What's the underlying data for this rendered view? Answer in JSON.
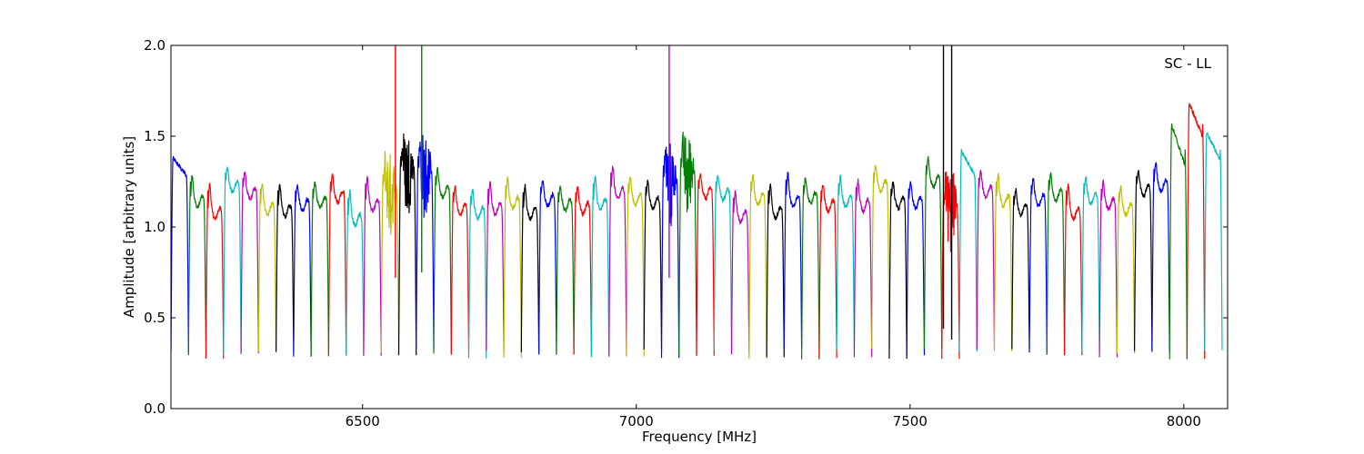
{
  "chart_data": {
    "type": "line",
    "title": "",
    "xlabel": "Frequency [MHz]",
    "ylabel": "Amplitude [arbitrary units]",
    "annotation": "SC - LL",
    "xlim": [
      6150,
      8080
    ],
    "ylim": [
      0.0,
      2.0
    ],
    "x_ticks": [
      6500,
      7000,
      7500,
      8000
    ],
    "x_tick_labels": [
      "6500",
      "7000",
      "7500",
      "8000"
    ],
    "y_ticks": [
      0.0,
      0.5,
      1.0,
      1.5,
      2.0
    ],
    "y_tick_labels": [
      "0.0",
      "0.5",
      "1.0",
      "1.5",
      "2.0"
    ],
    "grid": false,
    "legend": "none",
    "channel_width_mhz": 32,
    "color_cycle": [
      "#0000ff",
      "#008000",
      "#ff0000",
      "#00bfbf",
      "#bf00bf",
      "#bfbf00",
      "#000000"
    ],
    "channels": [
      {
        "start": 6150,
        "peak": 1.38,
        "shape": "rise"
      },
      {
        "start": 6182,
        "peak": 1.26,
        "shape": "flat"
      },
      {
        "start": 6214,
        "peak": 1.21,
        "shape": "flat"
      },
      {
        "start": 6246,
        "peak": 1.31,
        "shape": "flat"
      },
      {
        "start": 6278,
        "peak": 1.28,
        "shape": "flat"
      },
      {
        "start": 6310,
        "peak": 1.22,
        "shape": "flat"
      },
      {
        "start": 6342,
        "peak": 1.21,
        "shape": "flat"
      },
      {
        "start": 6374,
        "peak": 1.21,
        "shape": "flat"
      },
      {
        "start": 6406,
        "peak": 1.22,
        "shape": "flat"
      },
      {
        "start": 6438,
        "peak": 1.26,
        "shape": "flat"
      },
      {
        "start": 6470,
        "peak": 1.17,
        "shape": "flat"
      },
      {
        "start": 6502,
        "peak": 1.25,
        "shape": "flat"
      },
      {
        "start": 6534,
        "peak": 1.3,
        "shape": "rfi"
      },
      {
        "start": 6566,
        "peak": 1.4,
        "shape": "rfi"
      },
      {
        "start": 6598,
        "peak": 1.4,
        "shape": "rfi"
      },
      {
        "start": 6630,
        "peak": 1.29,
        "shape": "flat"
      },
      {
        "start": 6662,
        "peak": 1.2,
        "shape": "flat"
      },
      {
        "start": 6694,
        "peak": 1.18,
        "shape": "flat"
      },
      {
        "start": 6726,
        "peak": 1.22,
        "shape": "flat"
      },
      {
        "start": 6758,
        "peak": 1.24,
        "shape": "flat"
      },
      {
        "start": 6790,
        "peak": 1.2,
        "shape": "flat"
      },
      {
        "start": 6822,
        "peak": 1.23,
        "shape": "flat"
      },
      {
        "start": 6854,
        "peak": 1.2,
        "shape": "flat"
      },
      {
        "start": 6886,
        "peak": 1.2,
        "shape": "flat"
      },
      {
        "start": 6918,
        "peak": 1.25,
        "shape": "flat"
      },
      {
        "start": 6950,
        "peak": 1.31,
        "shape": "flat"
      },
      {
        "start": 6982,
        "peak": 1.25,
        "shape": "flat"
      },
      {
        "start": 7014,
        "peak": 1.23,
        "shape": "flat"
      },
      {
        "start": 7046,
        "peak": 1.35,
        "shape": "rfi"
      },
      {
        "start": 7078,
        "peak": 1.39,
        "shape": "rfi"
      },
      {
        "start": 7110,
        "peak": 1.27,
        "shape": "flat"
      },
      {
        "start": 7142,
        "peak": 1.26,
        "shape": "flat"
      },
      {
        "start": 7174,
        "peak": 1.17,
        "shape": "flat"
      },
      {
        "start": 7206,
        "peak": 1.26,
        "shape": "flat"
      },
      {
        "start": 7238,
        "peak": 1.21,
        "shape": "flat"
      },
      {
        "start": 7270,
        "peak": 1.27,
        "shape": "flat"
      },
      {
        "start": 7302,
        "peak": 1.24,
        "shape": "flat"
      },
      {
        "start": 7334,
        "peak": 1.21,
        "shape": "flat"
      },
      {
        "start": 7366,
        "peak": 1.25,
        "shape": "flat"
      },
      {
        "start": 7398,
        "peak": 1.23,
        "shape": "flat"
      },
      {
        "start": 7430,
        "peak": 1.31,
        "shape": "flat"
      },
      {
        "start": 7462,
        "peak": 1.22,
        "shape": "flat"
      },
      {
        "start": 7494,
        "peak": 1.22,
        "shape": "flat"
      },
      {
        "start": 7526,
        "peak": 1.35,
        "shape": "flat"
      },
      {
        "start": 7558,
        "peak": 1.2,
        "shape": "rfi"
      },
      {
        "start": 7590,
        "peak": 1.42,
        "shape": "rise"
      },
      {
        "start": 7622,
        "peak": 1.28,
        "shape": "flat"
      },
      {
        "start": 7654,
        "peak": 1.26,
        "shape": "flat"
      },
      {
        "start": 7686,
        "peak": 1.18,
        "shape": "flat"
      },
      {
        "start": 7718,
        "peak": 1.24,
        "shape": "flat"
      },
      {
        "start": 7750,
        "peak": 1.27,
        "shape": "flat"
      },
      {
        "start": 7782,
        "peak": 1.21,
        "shape": "flat"
      },
      {
        "start": 7814,
        "peak": 1.25,
        "shape": "flat"
      },
      {
        "start": 7846,
        "peak": 1.22,
        "shape": "flat"
      },
      {
        "start": 7878,
        "peak": 1.2,
        "shape": "flat"
      },
      {
        "start": 7910,
        "peak": 1.29,
        "shape": "flat"
      },
      {
        "start": 7942,
        "peak": 1.33,
        "shape": "flat"
      },
      {
        "start": 7974,
        "peak": 1.56,
        "shape": "peak"
      },
      {
        "start": 8006,
        "peak": 1.68,
        "shape": "peak"
      },
      {
        "start": 8038,
        "peak": 1.52,
        "shape": "peak"
      }
    ],
    "rfi_spikes": [
      {
        "x": 6560,
        "color": "#ff0000",
        "top": 2.0,
        "bottom": 0.72
      },
      {
        "x": 6608,
        "color": "#008000",
        "top": 2.0,
        "bottom": 0.75
      },
      {
        "x": 7060,
        "color": "#bf00bf",
        "top": 2.0,
        "bottom": 0.72
      },
      {
        "x": 7561,
        "color": "#000000",
        "top": 2.0,
        "bottom": 0.44
      },
      {
        "x": 7576,
        "color": "#000000",
        "top": 2.0,
        "bottom": 0.38
      }
    ]
  }
}
